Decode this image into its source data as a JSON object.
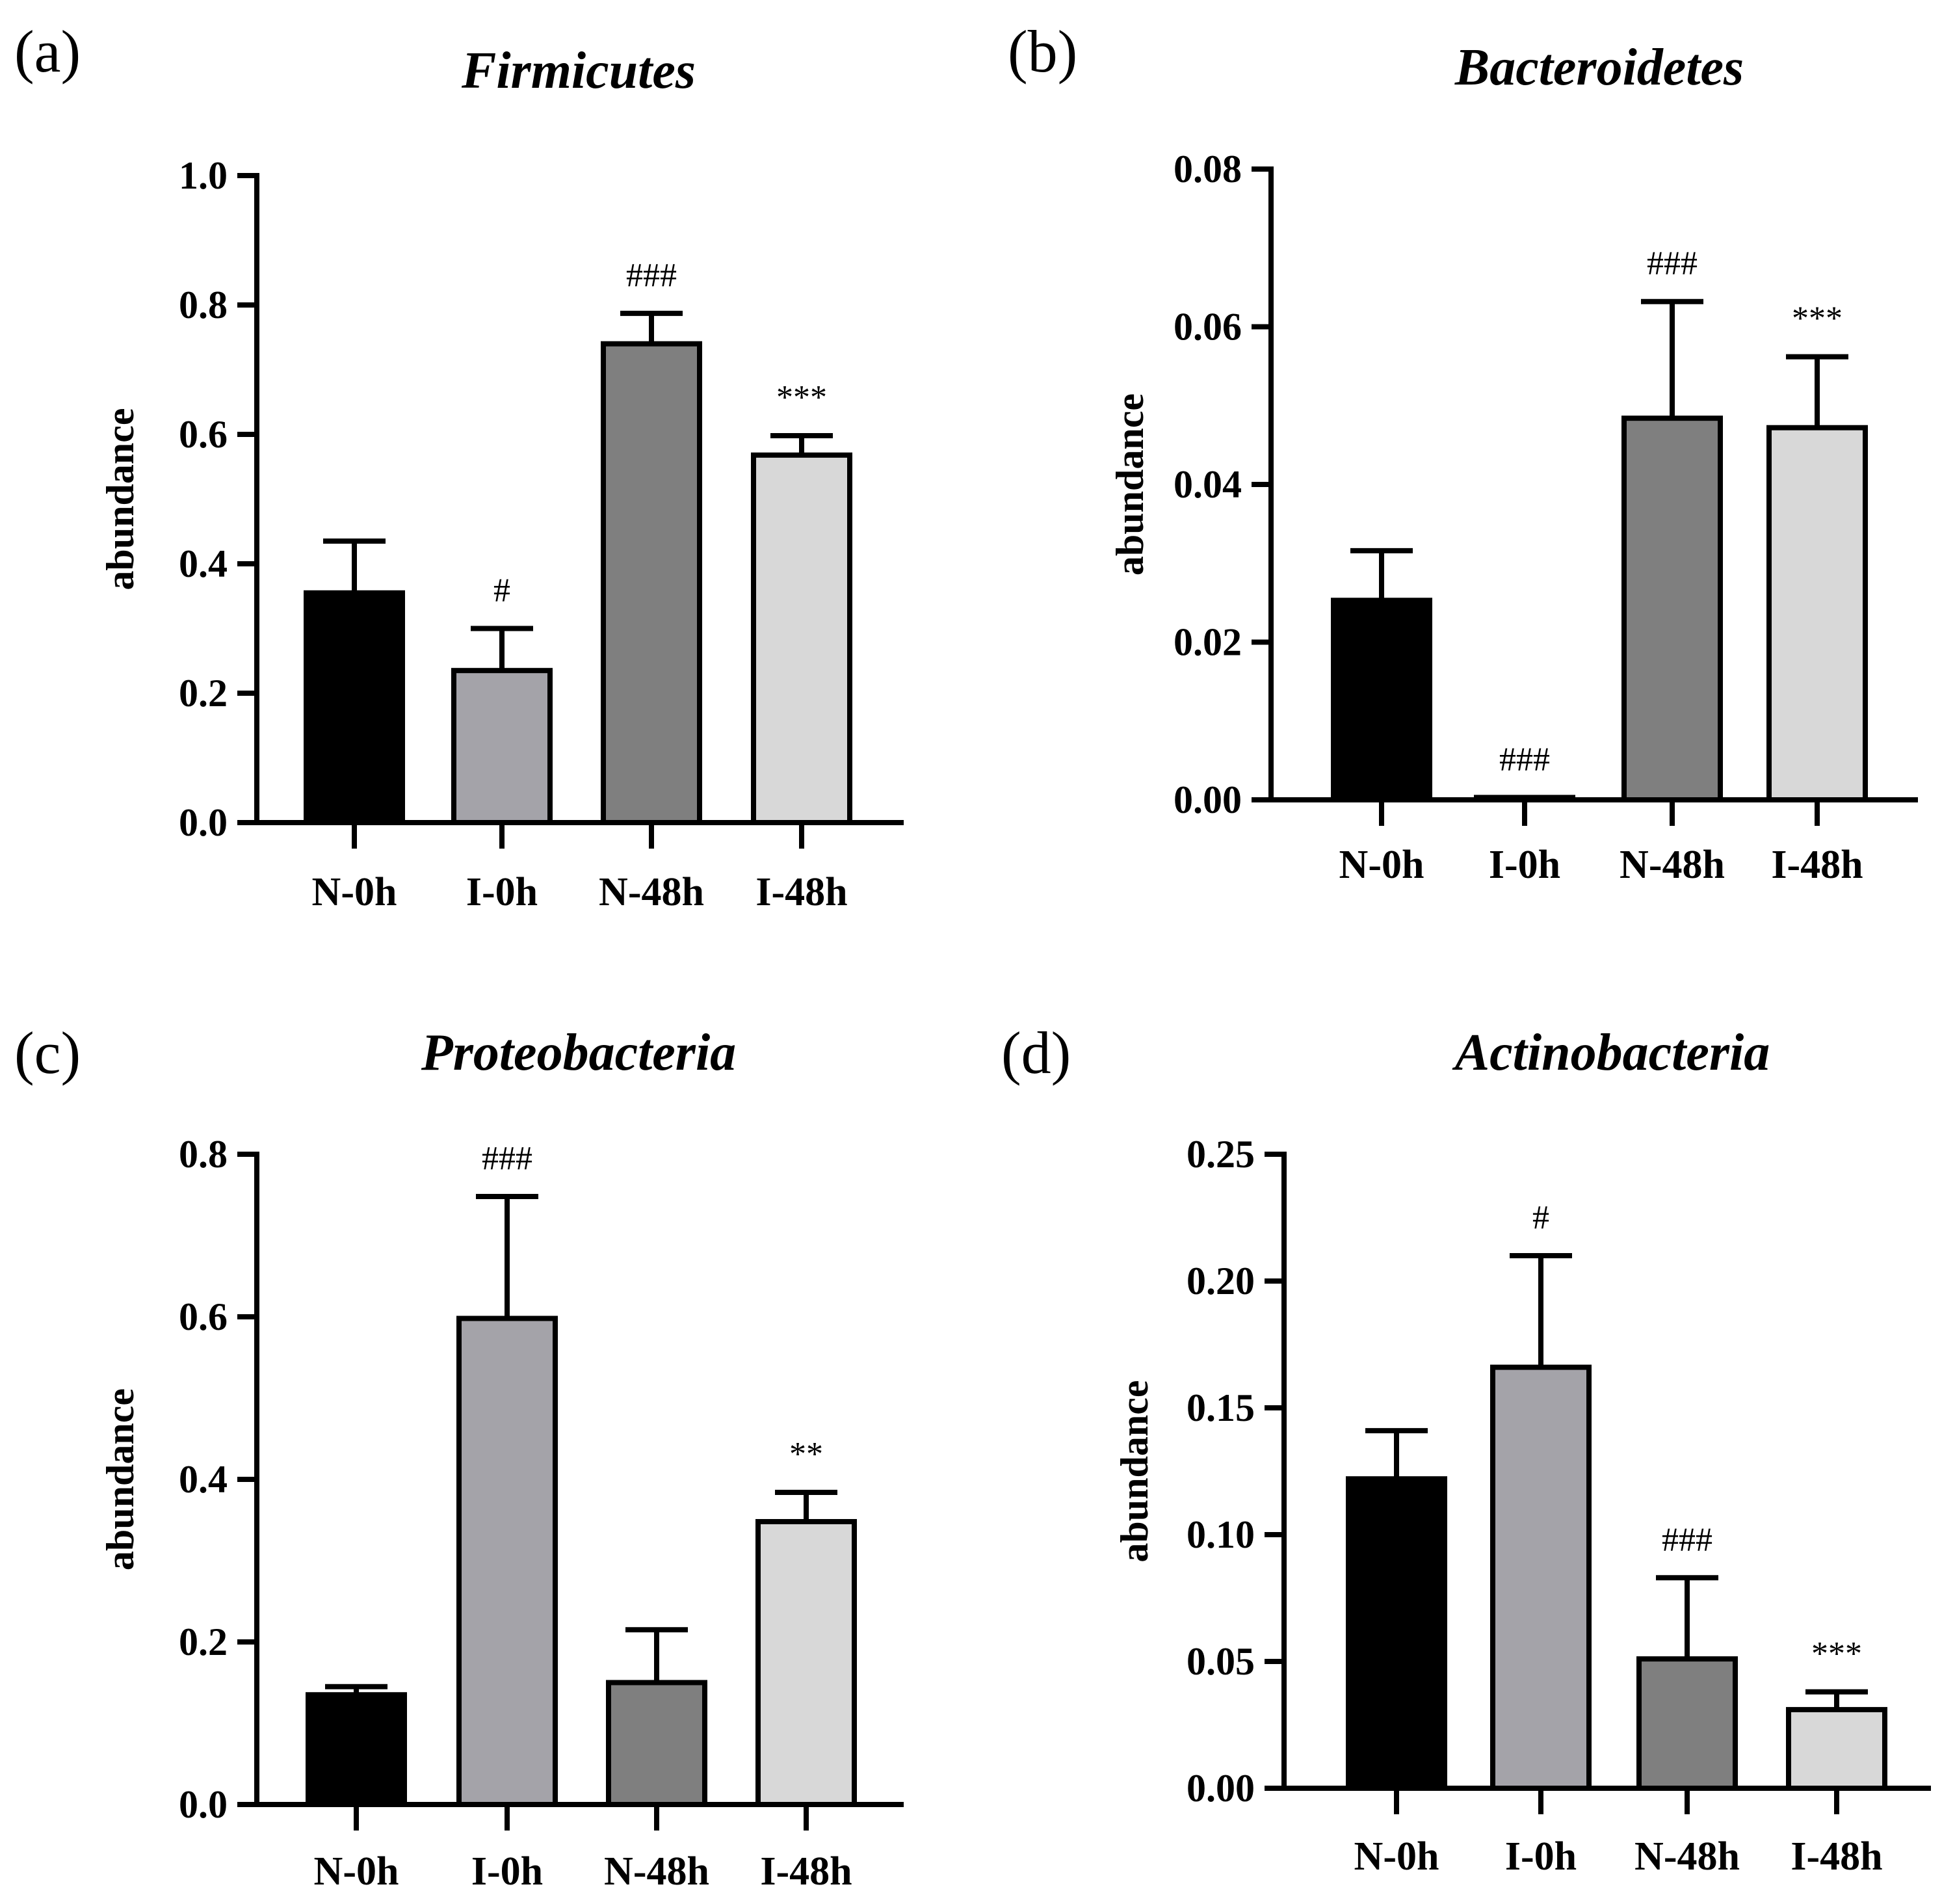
{
  "chart_data": [
    {
      "type": "bar",
      "panel": "(a)",
      "title": "Firmicutes",
      "xlabel": "",
      "ylabel": "abundance",
      "categories": [
        "N-0h",
        "I-0h",
        "N-48h",
        "I-48h"
      ],
      "values": [
        0.355,
        0.235,
        0.74,
        0.568
      ],
      "errors": [
        0.08,
        0.065,
        0.047,
        0.03
      ],
      "significance": [
        "",
        "#",
        "###",
        "***"
      ],
      "ylim": [
        0,
        1.0
      ],
      "yticks": [
        0.0,
        0.2,
        0.4,
        0.6,
        0.8,
        1.0
      ],
      "ytick_labels": [
        "0.0",
        "0.2",
        "0.4",
        "0.6",
        "0.8",
        "1.0"
      ],
      "bar_colors": [
        "#000000",
        "#a4a3a9",
        "#7f7f7f",
        "#d8d8d8"
      ],
      "grid": false
    },
    {
      "type": "bar",
      "panel": "(b)",
      "title": "Bacteroidetes",
      "xlabel": "",
      "ylabel": "abundance",
      "categories": [
        "N-0h",
        "I-0h",
        "N-48h",
        "I-48h"
      ],
      "values": [
        0.0253,
        0.0003,
        0.0484,
        0.0472
      ],
      "errors": [
        0.0063,
        0.0,
        0.0148,
        0.009
      ],
      "significance": [
        "",
        "###",
        "###",
        "***"
      ],
      "ylim": [
        0,
        0.08
      ],
      "yticks": [
        0.0,
        0.02,
        0.04,
        0.06,
        0.08
      ],
      "ytick_labels": [
        "0.00",
        "0.02",
        "0.04",
        "0.06",
        "0.08"
      ],
      "bar_colors": [
        "#000000",
        "#a4a3a9",
        "#7f7f7f",
        "#d8d8d8"
      ],
      "grid": false
    },
    {
      "type": "bar",
      "panel": "(c)",
      "title": "Proteobacteria",
      "xlabel": "",
      "ylabel": "abundance",
      "categories": [
        "N-0h",
        "I-0h",
        "N-48h",
        "I-48h"
      ],
      "values": [
        0.135,
        0.598,
        0.15,
        0.348
      ],
      "errors": [
        0.01,
        0.15,
        0.065,
        0.036
      ],
      "significance": [
        "",
        "###",
        "",
        "**"
      ],
      "ylim": [
        0,
        0.8
      ],
      "yticks": [
        0.0,
        0.2,
        0.4,
        0.6,
        0.8
      ],
      "ytick_labels": [
        "0.0",
        "0.2",
        "0.4",
        "0.6",
        "0.8"
      ],
      "bar_colors": [
        "#000000",
        "#a4a3a9",
        "#7f7f7f",
        "#d8d8d8"
      ],
      "grid": false
    },
    {
      "type": "bar",
      "panel": "(d)",
      "title": "Actinobacteria",
      "xlabel": "",
      "ylabel": "abundance",
      "categories": [
        "N-0h",
        "I-0h",
        "N-48h",
        "I-48h"
      ],
      "values": [
        0.122,
        0.166,
        0.051,
        0.031
      ],
      "errors": [
        0.019,
        0.044,
        0.032,
        0.007
      ],
      "significance": [
        "",
        "#",
        "###",
        "***"
      ],
      "ylim": [
        0,
        0.25
      ],
      "yticks": [
        0.0,
        0.05,
        0.1,
        0.15,
        0.2,
        0.25
      ],
      "ytick_labels": [
        "0.00",
        "0.05",
        "0.10",
        "0.15",
        "0.20",
        "0.25"
      ],
      "bar_colors": [
        "#000000",
        "#a4a3a9",
        "#7f7f7f",
        "#d8d8d8"
      ],
      "grid": false
    }
  ]
}
